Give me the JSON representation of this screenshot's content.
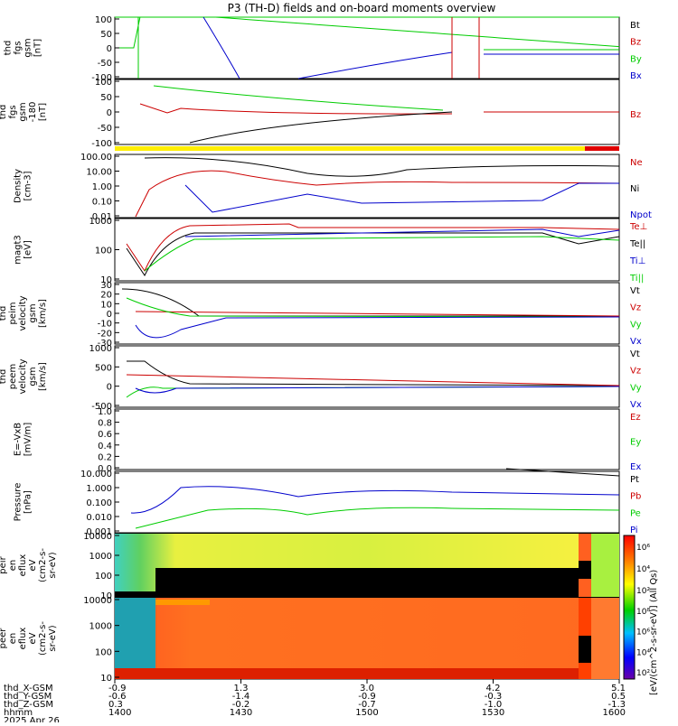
{
  "title": "P3 (TH-D) fields and on-board moments overview",
  "colors": {
    "black": "#000000",
    "red": "#cc0000",
    "green": "#00cc00",
    "blue": "#0000cc",
    "yellow": "#ffee00"
  },
  "chart_data": [
    {
      "id": "fgs",
      "type": "line",
      "ylabel": [
        "thd",
        "fgs",
        "gsm",
        "[nT]"
      ],
      "yticks": [
        "100",
        "50",
        "0",
        "-50",
        "-100"
      ],
      "ylim": [
        -100,
        100
      ],
      "legend": [
        "Bt",
        "Bz",
        "By",
        "Bx"
      ]
    },
    {
      "id": "fgs_bp",
      "type": "line",
      "ylabel": [
        "thd",
        "fgs",
        "gsm",
        "-180",
        "[nT]"
      ],
      "yticks": [
        "100",
        "50",
        "0",
        "-50",
        "-100"
      ],
      "ylim": [
        -120,
        100
      ],
      "legend": [
        "Bz"
      ]
    },
    {
      "id": "density",
      "type": "line",
      "scale": "log",
      "ylabel": [
        "Density",
        "[cm-3]"
      ],
      "yticks": [
        "100.00",
        "10.00",
        "1.00",
        "0.10",
        "0.01"
      ],
      "legend": [
        "Ne",
        "Ni",
        "Npot"
      ]
    },
    {
      "id": "temperature",
      "type": "line",
      "scale": "log",
      "ylabel": [
        "magt3",
        "[eV]"
      ],
      "yticks": [
        "1000",
        "100",
        "10"
      ],
      "legend": [
        "Te⊥",
        "Te||",
        "Ti⊥",
        "Ti||"
      ]
    },
    {
      "id": "peim_vel",
      "type": "line",
      "ylabel": [
        "thd",
        "peim",
        "velocity",
        "gsm",
        "[km/s]"
      ],
      "yticks": [
        "30",
        "20",
        "10",
        "0",
        "-10",
        "-20",
        "-30"
      ],
      "legend": [
        "Vt",
        "Vz",
        "Vy",
        "Vx"
      ]
    },
    {
      "id": "peem_vel",
      "type": "line",
      "ylabel": [
        "thd",
        "peem",
        "velocity",
        "gsm",
        "[km/s]"
      ],
      "yticks": [
        "1000",
        "500",
        "0",
        "-500"
      ],
      "legend": [
        "Vt",
        "Vz",
        "Vy",
        "Vx"
      ]
    },
    {
      "id": "efield",
      "type": "line",
      "ylabel": [
        "E=-VxB",
        "[mV/m]"
      ],
      "yticks": [
        "1.0",
        "0.8",
        "0.6",
        "0.4",
        "0.2",
        "0.0"
      ],
      "legend": [
        "Ez",
        "Ey",
        "Ex"
      ]
    },
    {
      "id": "pressure",
      "type": "line",
      "scale": "log",
      "ylabel": [
        "Pressure",
        "[nPa]"
      ],
      "yticks": [
        "10.000",
        "1.000",
        "0.100",
        "0.010",
        "0.001"
      ],
      "legend": [
        "Pt",
        "Pb",
        "Pe",
        "Pi"
      ]
    },
    {
      "id": "peir_spec",
      "type": "heatmap",
      "ylabel": [
        "thd",
        "peir",
        "en",
        "eflux",
        "eV",
        "(cm2-s-",
        "sr-eV)"
      ],
      "yticks": [
        "10000",
        "1000",
        "100",
        "10"
      ],
      "colorbar": [
        "10⁶",
        "10⁴",
        "10²"
      ]
    },
    {
      "id": "peer_spec",
      "type": "heatmap",
      "ylabel": [
        "thd",
        "peer",
        "en",
        "eflux",
        "eV",
        "(cm2-s-",
        "sr-eV)"
      ],
      "yticks": [
        "10000",
        "1000",
        "100",
        "10"
      ],
      "colorbar": [
        "10⁸",
        "10⁶",
        "10⁴",
        "10²"
      ]
    }
  ],
  "colorbar_label": "[eV/(cm^2-s-sr-eV)] (All Qs)",
  "xaxis": {
    "row_labels": [
      "thd_X-GSM",
      "thd_Y-GSM",
      "thd_Z-GSM",
      "hhmm",
      "2025 Apr 26"
    ],
    "columns": [
      [
        "-0.9",
        "-0.6",
        "0.3",
        "1400"
      ],
      [
        "1.3",
        "-1.4",
        "-0.2",
        "1430"
      ],
      [
        "3.0",
        "-0.9",
        "-0.7",
        "1500"
      ],
      [
        "4.2",
        "-0.3",
        "-1.0",
        "1530"
      ],
      [
        "5.1",
        "0.5",
        "-1.3",
        "1600"
      ]
    ]
  }
}
